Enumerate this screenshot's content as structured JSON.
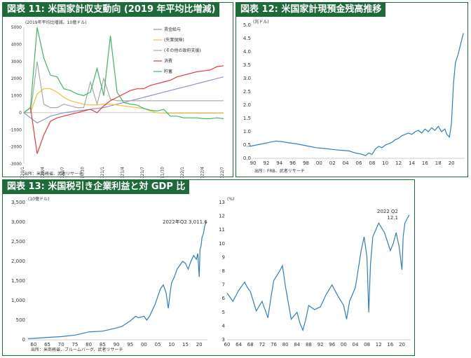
{
  "panels": [
    {
      "title": "図表 11: 米国家計収支動向 (2019 年平均比増減)"
    },
    {
      "title": "図表 12: 米国家計現預金残高推移"
    },
    {
      "title": "図表 13: 米国税引き企業利益と対 GDP 比"
    }
  ],
  "chart_data": [
    {
      "type": "line",
      "unit_label": "(2019年平均比増減、10億ドル)",
      "source": "出所：米商務省、武者リサーチ",
      "ylim": [
        -3000,
        5000
      ],
      "y_ticks": [
        -3000,
        -2000,
        -1000,
        0,
        1000,
        2000,
        3000,
        4000,
        5000
      ],
      "x_tick_labels": [
        "2020/1",
        "2020/4",
        "2020/7",
        "2020/10",
        "2021/1",
        "2021/4",
        "2021/7",
        "2021/10",
        "2022/1",
        "2022/4",
        "2022/7"
      ],
      "colors": [
        "#8a96c8",
        "#f2c23a",
        "#a8a8a8",
        "#e8393a",
        "#3cb860"
      ],
      "series": [
        {
          "name": "賃金給与",
          "values": [
            0,
            -300,
            -600,
            -400,
            -200,
            -100,
            0,
            50,
            100,
            150,
            200,
            250,
            300,
            400,
            500,
            600,
            700,
            800,
            900,
            1000,
            1100,
            1200,
            1300,
            1400,
            1500,
            1600,
            1700,
            1800,
            1900,
            2000,
            2100
          ]
        },
        {
          "name": "(失業保険)",
          "values": [
            0,
            0,
            1100,
            1400,
            1400,
            1200,
            900,
            700,
            600,
            500,
            450,
            450,
            500,
            500,
            450,
            400,
            350,
            300,
            250,
            100,
            0,
            -20,
            -30,
            -30,
            -30,
            -30,
            -30,
            -30,
            -30,
            -30,
            -30
          ]
        },
        {
          "name": "(その他の政府支援)",
          "values": [
            0,
            0,
            3000,
            500,
            300,
            300,
            500,
            400,
            300,
            300,
            1800,
            500,
            2000,
            800,
            700,
            700,
            700,
            700,
            700,
            700,
            700,
            700,
            700,
            700,
            700,
            700,
            700,
            700,
            700,
            700,
            700
          ]
        },
        {
          "name": "消費",
          "values": [
            0,
            300,
            -2400,
            -1300,
            -500,
            -300,
            -200,
            -100,
            0,
            100,
            200,
            0,
            400,
            700,
            900,
            1100,
            1300,
            1400,
            1400,
            1600,
            1700,
            1800,
            1900,
            2100,
            2200,
            2300,
            2400,
            2450,
            2500,
            2700,
            2750
          ]
        },
        {
          "name": "貯蓄",
          "values": [
            0,
            300,
            5000,
            3200,
            2200,
            2100,
            1400,
            1300,
            1100,
            1000,
            1200,
            2600,
            1000,
            4500,
            1200,
            600,
            500,
            450,
            250,
            150,
            100,
            200,
            -200,
            -200,
            -300,
            -300,
            -300,
            -350,
            -350,
            -300,
            -350
          ]
        }
      ]
    },
    {
      "type": "line",
      "unit_label": "(兆ドル)",
      "source": "出所：FRB、武者リサーチ",
      "ylim": [
        0,
        5.0
      ],
      "y_ticks": [
        0,
        0.5,
        1.0,
        1.5,
        2.0,
        2.5,
        3.0,
        3.5,
        4.0,
        4.5,
        5.0
      ],
      "y_tick_labels": [
        "0.0",
        "0.5",
        "1.0",
        "1.5",
        "2.0",
        "2.5",
        "3.0",
        "3.5",
        "4.0",
        "4.5",
        "5.0"
      ],
      "xlim": [
        1990,
        2022
      ],
      "x_ticks": [
        1990,
        1992,
        1994,
        1996,
        1998,
        2000,
        2002,
        2004,
        2006,
        2008,
        2010,
        2012,
        2014,
        2016,
        2018,
        2020
      ],
      "x_tick_labels": [
        "90",
        "92",
        "94",
        "96",
        "98",
        "00",
        "02",
        "04",
        "06",
        "08",
        "10",
        "12",
        "14",
        "16",
        "18",
        "20"
      ],
      "color": "#2e7fc0",
      "x": [
        1989.5,
        1990.5,
        1991.5,
        1992.5,
        1993.5,
        1994.5,
        1995.5,
        1996.5,
        1997.5,
        1998.5,
        1999.5,
        2000.5,
        2001.5,
        2002.5,
        2003.5,
        2004.5,
        2005.5,
        2006.5,
        2007.0,
        2007.5,
        2008.0,
        2008.5,
        2009.0,
        2009.5,
        2010.0,
        2010.5,
        2011.0,
        2011.5,
        2012.0,
        2012.5,
        2013.0,
        2013.5,
        2014.0,
        2014.5,
        2015.0,
        2015.5,
        2016.0,
        2016.5,
        2017.0,
        2017.5,
        2018.0,
        2018.5,
        2019.0,
        2019.3,
        2019.7,
        2020.0,
        2020.3,
        2020.6,
        2021.0,
        2021.4,
        2021.8
      ],
      "values": [
        0.45,
        0.5,
        0.55,
        0.6,
        0.65,
        0.62,
        0.58,
        0.55,
        0.5,
        0.45,
        0.4,
        0.38,
        0.35,
        0.32,
        0.3,
        0.28,
        0.2,
        0.15,
        0.1,
        0.2,
        0.15,
        0.35,
        0.45,
        0.4,
        0.5,
        0.55,
        0.6,
        0.7,
        0.75,
        0.85,
        0.9,
        0.95,
        0.9,
        1.0,
        1.05,
        0.95,
        1.1,
        1.0,
        1.15,
        1.05,
        1.2,
        1.0,
        1.1,
        0.9,
        0.8,
        1.3,
        2.8,
        3.6,
        3.9,
        4.3,
        4.7
      ]
    },
    {
      "type": "line",
      "unit_label": "(10億ドル)",
      "source": "出所：米商務省、ブルームバーグ、武者リサーチ",
      "annotation": "2022年Q2  3,011.6",
      "ylim": [
        0,
        3500
      ],
      "y_ticks": [
        0,
        500,
        1000,
        1500,
        2000,
        2500,
        3000,
        3500
      ],
      "y_tick_labels": [
        "0",
        "500",
        "1,000",
        "1,500",
        "2,000",
        "2,500",
        "3,000",
        "3,500"
      ],
      "xlim": [
        1958,
        2023
      ],
      "x_ticks": [
        1960,
        1965,
        1970,
        1975,
        1980,
        1985,
        1990,
        1995,
        2000,
        2005,
        2010,
        2015,
        2020
      ],
      "x_tick_labels": [
        "60",
        "65",
        "70",
        "75",
        "80",
        "85",
        "90",
        "95",
        "00",
        "05",
        "10",
        "15",
        "20"
      ],
      "color": "#2e7fc0",
      "x": [
        1958,
        1960,
        1965,
        1970,
        1975,
        1980,
        1985,
        1990,
        1992,
        1995,
        1997,
        1998,
        2000,
        2001,
        2002,
        2004,
        2006,
        2007,
        2008,
        2008.8,
        2009.5,
        2010,
        2011,
        2012,
        2013,
        2014,
        2015,
        2016,
        2017,
        2018,
        2019,
        2019.5,
        2020.0,
        2020.3,
        2020.7,
        2021.0,
        2021.5,
        2022.0,
        2022.5
      ],
      "values": [
        30,
        35,
        60,
        80,
        120,
        200,
        220,
        300,
        340,
        480,
        600,
        560,
        600,
        500,
        600,
        900,
        1300,
        1400,
        1200,
        800,
        1200,
        1450,
        1600,
        1800,
        1900,
        2000,
        1950,
        1800,
        2000,
        2150,
        2050,
        2200,
        1600,
        2300,
        2400,
        2600,
        2700,
        2900,
        3011.6
      ]
    },
    {
      "type": "line",
      "unit_label": "(%)",
      "annotation": "2022 Q2",
      "annotation_value": "12.1",
      "ylim": [
        3,
        13
      ],
      "y_ticks": [
        3,
        4,
        5,
        6,
        7,
        8,
        9,
        10,
        11,
        12,
        13
      ],
      "xlim": [
        1960,
        2023
      ],
      "x_ticks": [
        1960,
        1964,
        1968,
        1972,
        1976,
        1980,
        1984,
        1988,
        1992,
        1996,
        2000,
        2004,
        2008,
        2012,
        2016,
        2020
      ],
      "x_tick_labels": [
        "60",
        "64",
        "68",
        "72",
        "76",
        "80",
        "84",
        "88",
        "92",
        "96",
        "00",
        "04",
        "08",
        "12",
        "16",
        "20"
      ],
      "color": "#2e7fc0",
      "x": [
        1960,
        1962,
        1964,
        1966,
        1967,
        1968,
        1970,
        1972,
        1974,
        1975,
        1976,
        1978,
        1979,
        1980,
        1982,
        1984,
        1985,
        1986,
        1987,
        1988,
        1990,
        1992,
        1994,
        1996,
        1998,
        2000,
        2001,
        2002,
        2004,
        2006,
        2007,
        2008,
        2008.6,
        2009.2,
        2010,
        2012,
        2014,
        2016,
        2017,
        2018,
        2019,
        2020,
        2020.4,
        2021,
        2022.5
      ],
      "values": [
        6.4,
        5.8,
        6.6,
        7.2,
        6.8,
        6.5,
        5.1,
        5.8,
        4.6,
        6.0,
        7.3,
        8.0,
        8.4,
        6.9,
        4.5,
        5.0,
        4.2,
        3.7,
        4.5,
        5.5,
        5.2,
        5.4,
        6.3,
        7.0,
        6.2,
        5.5,
        4.5,
        5.8,
        6.8,
        9.5,
        10.5,
        9.0,
        5.0,
        8.5,
        10.5,
        11.5,
        10.8,
        9.5,
        10.0,
        10.8,
        9.8,
        8.1,
        10.5,
        11.5,
        12.1
      ]
    }
  ]
}
